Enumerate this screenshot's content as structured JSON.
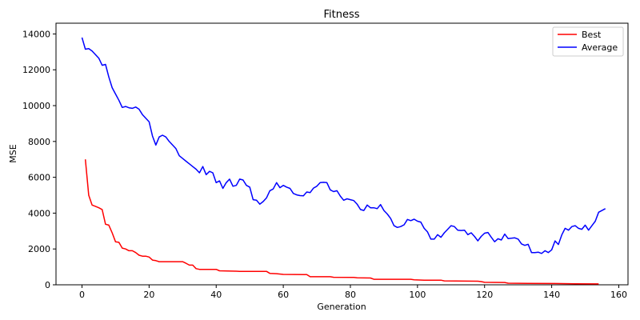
{
  "chart_data": {
    "type": "line",
    "title": "Fitness",
    "xlabel": "Generation",
    "ylabel": "MSE",
    "xlim": [
      -7.75,
      162.75
    ],
    "ylim": [
      0,
      14600
    ],
    "xticks": [
      0,
      20,
      40,
      60,
      80,
      100,
      120,
      140,
      160
    ],
    "yticks": [
      0,
      2000,
      4000,
      6000,
      8000,
      10000,
      12000,
      14000
    ],
    "grid": false,
    "legend_position": "top-right",
    "series": [
      {
        "name": "Best",
        "color": "#ff0000",
        "points": [
          [
            1,
            7000
          ],
          [
            2,
            5000
          ],
          [
            3,
            4450
          ],
          [
            4,
            4380
          ],
          [
            5,
            4300
          ],
          [
            6,
            4200
          ],
          [
            7,
            3380
          ],
          [
            8,
            3330
          ],
          [
            9,
            2900
          ],
          [
            10,
            2400
          ],
          [
            11,
            2370
          ],
          [
            12,
            2050
          ],
          [
            13,
            2000
          ],
          [
            14,
            1900
          ],
          [
            15,
            1900
          ],
          [
            16,
            1800
          ],
          [
            17,
            1650
          ],
          [
            18,
            1600
          ],
          [
            19,
            1600
          ],
          [
            20,
            1550
          ],
          [
            21,
            1380
          ],
          [
            22,
            1350
          ],
          [
            23,
            1290
          ],
          [
            24,
            1290
          ],
          [
            30,
            1290
          ],
          [
            31,
            1200
          ],
          [
            32,
            1100
          ],
          [
            33,
            1100
          ],
          [
            34,
            900
          ],
          [
            35,
            860
          ],
          [
            40,
            860
          ],
          [
            41,
            780
          ],
          [
            46,
            760
          ],
          [
            47,
            750
          ],
          [
            55,
            750
          ],
          [
            56,
            640
          ],
          [
            58,
            620
          ],
          [
            60,
            580
          ],
          [
            67,
            570
          ],
          [
            68,
            450
          ],
          [
            74,
            450
          ],
          [
            75,
            420
          ],
          [
            81,
            410
          ],
          [
            82,
            390
          ],
          [
            86,
            380
          ],
          [
            87,
            310
          ],
          [
            98,
            310
          ],
          [
            99,
            280
          ],
          [
            102,
            260
          ],
          [
            107,
            260
          ],
          [
            108,
            220
          ],
          [
            118,
            200
          ],
          [
            119,
            180
          ],
          [
            120,
            140
          ],
          [
            126,
            130
          ],
          [
            127,
            90
          ],
          [
            133,
            80
          ],
          [
            141,
            70
          ],
          [
            147,
            60
          ],
          [
            154,
            50
          ]
        ]
      },
      {
        "name": "Average",
        "color": "#0000ff",
        "points": [
          [
            0,
            13800
          ],
          [
            1,
            13150
          ],
          [
            2,
            13180
          ],
          [
            3,
            13050
          ],
          [
            4,
            12850
          ],
          [
            5,
            12650
          ],
          [
            6,
            12250
          ],
          [
            7,
            12300
          ],
          [
            8,
            11600
          ],
          [
            9,
            11000
          ],
          [
            10,
            10650
          ],
          [
            11,
            10300
          ],
          [
            12,
            9900
          ],
          [
            13,
            9950
          ],
          [
            14,
            9880
          ],
          [
            15,
            9850
          ],
          [
            16,
            9920
          ],
          [
            17,
            9800
          ],
          [
            18,
            9500
          ],
          [
            19,
            9300
          ],
          [
            20,
            9100
          ],
          [
            21,
            8300
          ],
          [
            22,
            7800
          ],
          [
            23,
            8250
          ],
          [
            24,
            8350
          ],
          [
            25,
            8250
          ],
          [
            26,
            8000
          ],
          [
            27,
            7800
          ],
          [
            28,
            7600
          ],
          [
            29,
            7200
          ],
          [
            30,
            7050
          ],
          [
            31,
            6900
          ],
          [
            32,
            6750
          ],
          [
            33,
            6600
          ],
          [
            34,
            6450
          ],
          [
            35,
            6250
          ],
          [
            36,
            6600
          ],
          [
            37,
            6150
          ],
          [
            38,
            6330
          ],
          [
            39,
            6250
          ],
          [
            40,
            5700
          ],
          [
            41,
            5800
          ],
          [
            42,
            5380
          ],
          [
            43,
            5700
          ],
          [
            44,
            5900
          ],
          [
            45,
            5500
          ],
          [
            46,
            5550
          ],
          [
            47,
            5900
          ],
          [
            48,
            5850
          ],
          [
            49,
            5550
          ],
          [
            50,
            5450
          ],
          [
            51,
            4750
          ],
          [
            52,
            4720
          ],
          [
            53,
            4500
          ],
          [
            54,
            4650
          ],
          [
            55,
            4850
          ],
          [
            56,
            5250
          ],
          [
            57,
            5350
          ],
          [
            58,
            5700
          ],
          [
            59,
            5420
          ],
          [
            60,
            5550
          ],
          [
            61,
            5450
          ],
          [
            62,
            5380
          ],
          [
            63,
            5100
          ],
          [
            64,
            5020
          ],
          [
            65,
            4980
          ],
          [
            66,
            4970
          ],
          [
            67,
            5180
          ],
          [
            68,
            5150
          ],
          [
            69,
            5400
          ],
          [
            70,
            5500
          ],
          [
            71,
            5700
          ],
          [
            72,
            5720
          ],
          [
            73,
            5700
          ],
          [
            74,
            5300
          ],
          [
            75,
            5200
          ],
          [
            76,
            5250
          ],
          [
            77,
            4950
          ],
          [
            78,
            4720
          ],
          [
            79,
            4800
          ],
          [
            80,
            4750
          ],
          [
            81,
            4700
          ],
          [
            82,
            4500
          ],
          [
            83,
            4200
          ],
          [
            84,
            4150
          ],
          [
            85,
            4450
          ],
          [
            86,
            4300
          ],
          [
            87,
            4300
          ],
          [
            88,
            4250
          ],
          [
            89,
            4480
          ],
          [
            90,
            4150
          ],
          [
            91,
            3950
          ],
          [
            92,
            3700
          ],
          [
            93,
            3300
          ],
          [
            94,
            3200
          ],
          [
            95,
            3250
          ],
          [
            96,
            3350
          ],
          [
            97,
            3650
          ],
          [
            98,
            3580
          ],
          [
            99,
            3660
          ],
          [
            100,
            3550
          ],
          [
            101,
            3500
          ],
          [
            102,
            3150
          ],
          [
            103,
            2950
          ],
          [
            104,
            2550
          ],
          [
            105,
            2550
          ],
          [
            106,
            2800
          ],
          [
            107,
            2650
          ],
          [
            108,
            2900
          ],
          [
            109,
            3100
          ],
          [
            110,
            3300
          ],
          [
            111,
            3250
          ],
          [
            112,
            3050
          ],
          [
            113,
            3030
          ],
          [
            114,
            3050
          ],
          [
            115,
            2800
          ],
          [
            116,
            2900
          ],
          [
            117,
            2700
          ],
          [
            118,
            2450
          ],
          [
            119,
            2700
          ],
          [
            120,
            2880
          ],
          [
            121,
            2920
          ],
          [
            122,
            2650
          ],
          [
            123,
            2400
          ],
          [
            124,
            2570
          ],
          [
            125,
            2500
          ],
          [
            126,
            2830
          ],
          [
            127,
            2580
          ],
          [
            128,
            2600
          ],
          [
            129,
            2620
          ],
          [
            130,
            2550
          ],
          [
            131,
            2280
          ],
          [
            132,
            2200
          ],
          [
            133,
            2260
          ],
          [
            134,
            1800
          ],
          [
            135,
            1800
          ],
          [
            136,
            1820
          ],
          [
            137,
            1750
          ],
          [
            138,
            1900
          ],
          [
            139,
            1800
          ],
          [
            140,
            1950
          ],
          [
            141,
            2450
          ],
          [
            142,
            2250
          ],
          [
            143,
            2780
          ],
          [
            144,
            3150
          ],
          [
            145,
            3050
          ],
          [
            146,
            3250
          ],
          [
            147,
            3300
          ],
          [
            148,
            3150
          ],
          [
            149,
            3100
          ],
          [
            150,
            3330
          ],
          [
            151,
            3050
          ],
          [
            152,
            3300
          ],
          [
            153,
            3550
          ],
          [
            154,
            4050
          ],
          [
            155,
            4150
          ],
          [
            156,
            4250
          ]
        ]
      }
    ]
  }
}
